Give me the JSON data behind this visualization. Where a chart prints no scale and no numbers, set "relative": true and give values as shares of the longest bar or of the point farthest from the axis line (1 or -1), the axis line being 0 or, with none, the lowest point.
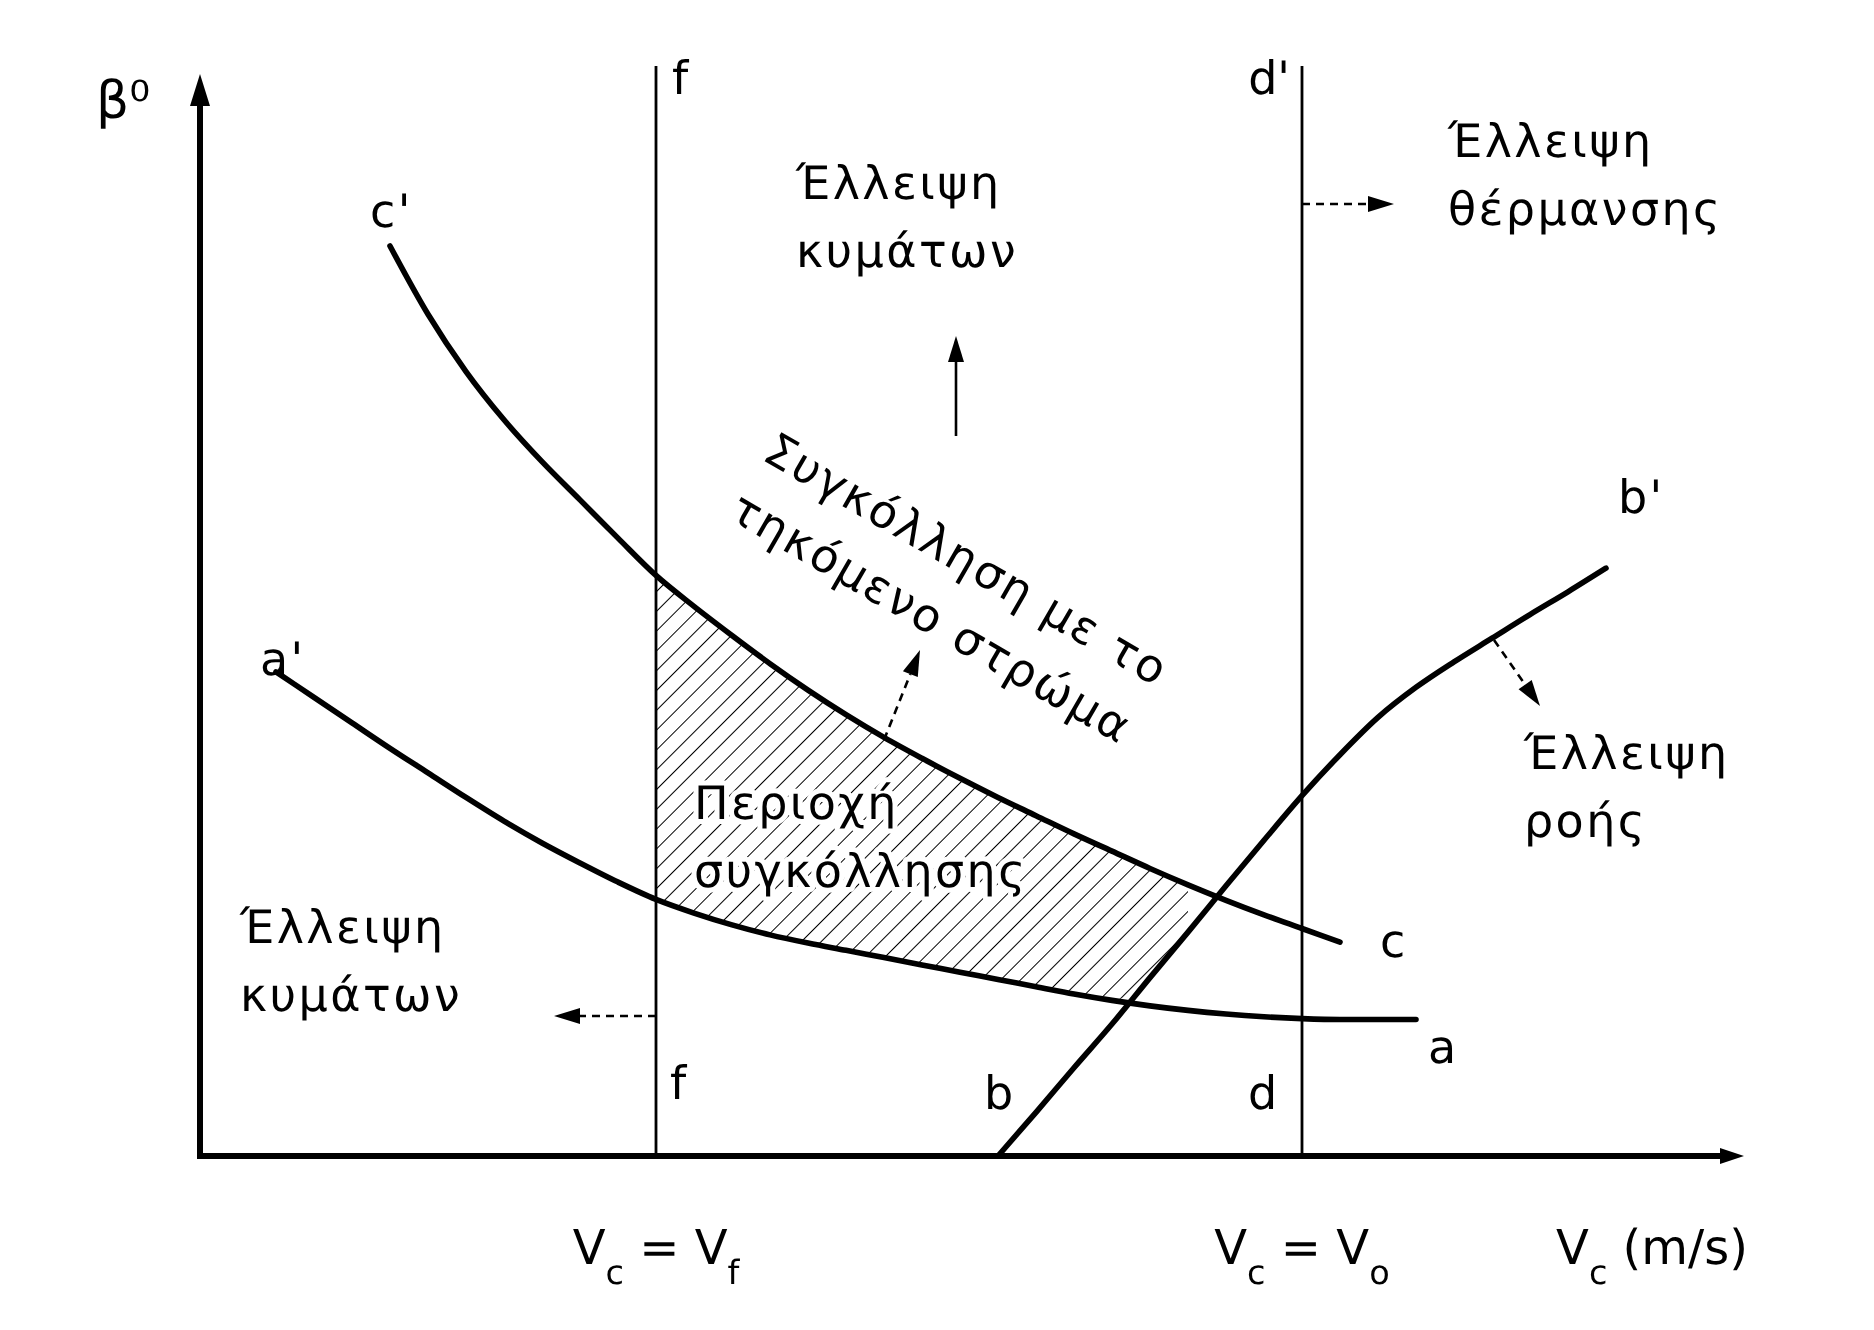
{
  "chart_data": {
    "type": "line",
    "relative": true,
    "xlabel": "V$_{c}$ (m/s)",
    "ylabel": "β⁰",
    "categories": [
      null,
      null,
      null,
      null,
      null,
      null,
      null,
      null,
      null,
      null,
      null,
      null,
      "V$_{c}$ = V$_{f}$",
      null,
      null,
      null,
      null,
      null,
      null,
      null,
      null,
      null,
      null,
      null,
      null,
      null,
      null,
      null,
      null,
      "V$_{c}$ = V$_{o}$",
      null,
      null,
      null,
      null,
      null,
      null,
      null,
      null,
      null,
      null,
      null
    ],
    "series": [
      {
        "color": "#000000",
        "values": [
          null,
          null,
          null,
          null,
          null,
          1,
          0.925,
          0.862,
          0.809,
          0.763,
          0.721,
          0.679,
          0.638,
          0.604,
          0.572,
          0.541,
          0.512,
          0.485,
          0.46,
          0.437,
          0.415,
          0.394,
          0.374,
          0.354,
          0.335,
          0.316,
          0.298,
          0.281,
          0.265,
          0.25,
          0.235,
          null,
          null,
          null,
          null,
          null,
          null,
          null,
          null,
          null,
          null
        ],
        "lower": [
          null,
          null,
          null,
          null,
          null,
          null,
          null,
          null,
          null,
          null,
          null,
          null,
          0.282,
          0.267,
          0.254,
          0.243,
          0.234,
          0.226,
          0.218,
          0.21,
          0.202,
          0.194,
          0.186,
          0.178,
          0.171,
          0.196,
          0.246,
          null,
          null,
          null,
          null,
          null,
          null,
          null,
          null,
          null,
          null,
          null,
          null,
          null,
          null
        ],
        "upper": [
          null,
          null,
          null,
          null,
          null,
          null,
          null,
          null,
          null,
          null,
          null,
          null,
          0.638,
          0.604,
          0.572,
          0.541,
          0.512,
          0.485,
          0.46,
          0.437,
          0.415,
          0.394,
          0.374,
          0.354,
          0.335,
          0.316,
          0.298,
          null,
          null,
          null,
          null,
          null,
          null,
          null,
          null,
          null,
          null,
          null,
          null,
          null,
          null
        ]
      },
      {
        "color": "#000000",
        "values": [
          null,
          null,
          0.532,
          0.504,
          0.476,
          0.448,
          0.421,
          0.394,
          0.368,
          0.344,
          0.322,
          0.301,
          0.282,
          0.267,
          0.254,
          0.243,
          0.234,
          0.226,
          0.218,
          0.21,
          0.202,
          0.194,
          0.186,
          0.178,
          0.171,
          0.165,
          0.16,
          0.156,
          0.153,
          0.151,
          0.15,
          0.15,
          0.15,
          null,
          null,
          null,
          null,
          null,
          null,
          null,
          null
        ]
      },
      {
        "color": "#000000",
        "values": [
          null,
          null,
          null,
          null,
          null,
          null,
          null,
          null,
          null,
          null,
          null,
          null,
          null,
          null,
          null,
          null,
          null,
          null,
          null,
          null,
          null,
          0,
          0.048,
          0.097,
          0.145,
          0.196,
          0.246,
          0.297,
          0.347,
          0.396,
          0.441,
          0.482,
          0.515,
          0.543,
          0.569,
          0.595,
          0.62,
          0.646,
          null,
          null,
          null
        ]
      }
    ],
    "ref_lines": [
      {
        "axis": "x",
        "value": "V$_{c}$ = V$_{f}$",
        "label": "f",
        "color": "#000000"
      },
      {
        "axis": "x",
        "value": "V$_{c}$ = V$_{o}$",
        "label": "d'",
        "color": "#000000"
      }
    ],
    "annotations": [
      "c'",
      "a'",
      "b'",
      "c",
      "a",
      "b",
      "d",
      "f",
      "Έλλειψη\nκυμάτων",
      "Έλλειψη\nθέρμανσης",
      "Συγκόλληση με το\nτηκόμενο στρώμα",
      "Έλλειψη\nροής",
      "Έλλειψη\nκυμάτων",
      "Περιοχή\nσυγκόλλησης"
    ]
  }
}
